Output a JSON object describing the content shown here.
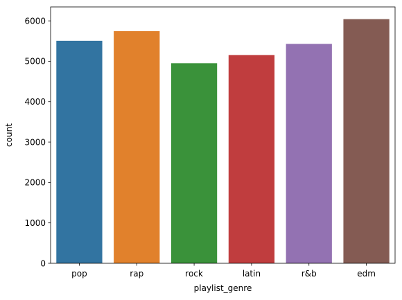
{
  "chart_data": {
    "type": "bar",
    "categories": [
      "pop",
      "rap",
      "rock",
      "latin",
      "r&b",
      "edm"
    ],
    "values": [
      5507,
      5746,
      4951,
      5155,
      5431,
      6043
    ],
    "colors": [
      "#3274a1",
      "#e1812c",
      "#3a923a",
      "#c03d3e",
      "#9372b2",
      "#845b53"
    ],
    "title": "",
    "xlabel": "playlist_genre",
    "ylabel": "count",
    "ylim": [
      0,
      6345
    ],
    "yticks": [
      0,
      1000,
      2000,
      3000,
      4000,
      5000,
      6000
    ],
    "grid": false,
    "legend": "none"
  }
}
